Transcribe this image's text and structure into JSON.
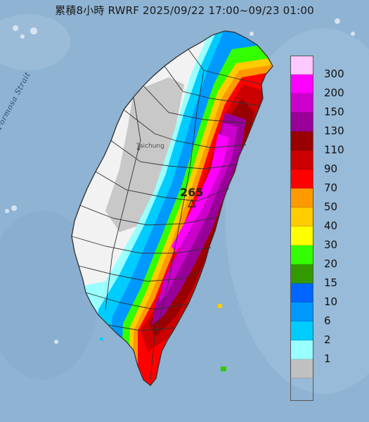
{
  "title": "累積8小時 RWRF 2025/09/22 17:00~09/23 01:00",
  "strait_label": "Formosa Strait",
  "city_label": "Taichung",
  "max_value": "265",
  "colors": {
    "sea": "#8fb3d3",
    "land_dry": "#f2f2f2",
    "boundary": "#333333"
  },
  "legend": [
    {
      "label": "300",
      "color": "#ffc8ff"
    },
    {
      "label": "200",
      "color": "#ff00ff"
    },
    {
      "label": "150",
      "color": "#cc00cc"
    },
    {
      "label": "130",
      "color": "#990099"
    },
    {
      "label": "110",
      "color": "#990000"
    },
    {
      "label": "90",
      "color": "#cc0000"
    },
    {
      "label": "70",
      "color": "#ff0000"
    },
    {
      "label": "50",
      "color": "#ff9900"
    },
    {
      "label": "40",
      "color": "#ffcc00"
    },
    {
      "label": "30",
      "color": "#ffff00"
    },
    {
      "label": "20",
      "color": "#33ff00"
    },
    {
      "label": "15",
      "color": "#339900"
    },
    {
      "label": "10",
      "color": "#0066ff"
    },
    {
      "label": "6",
      "color": "#0099ff"
    },
    {
      "label": "2",
      "color": "#00ccff"
    },
    {
      "label": "1",
      "color": "#99ffff"
    },
    {
      "label": "",
      "color": "#c0c0c0"
    }
  ]
}
